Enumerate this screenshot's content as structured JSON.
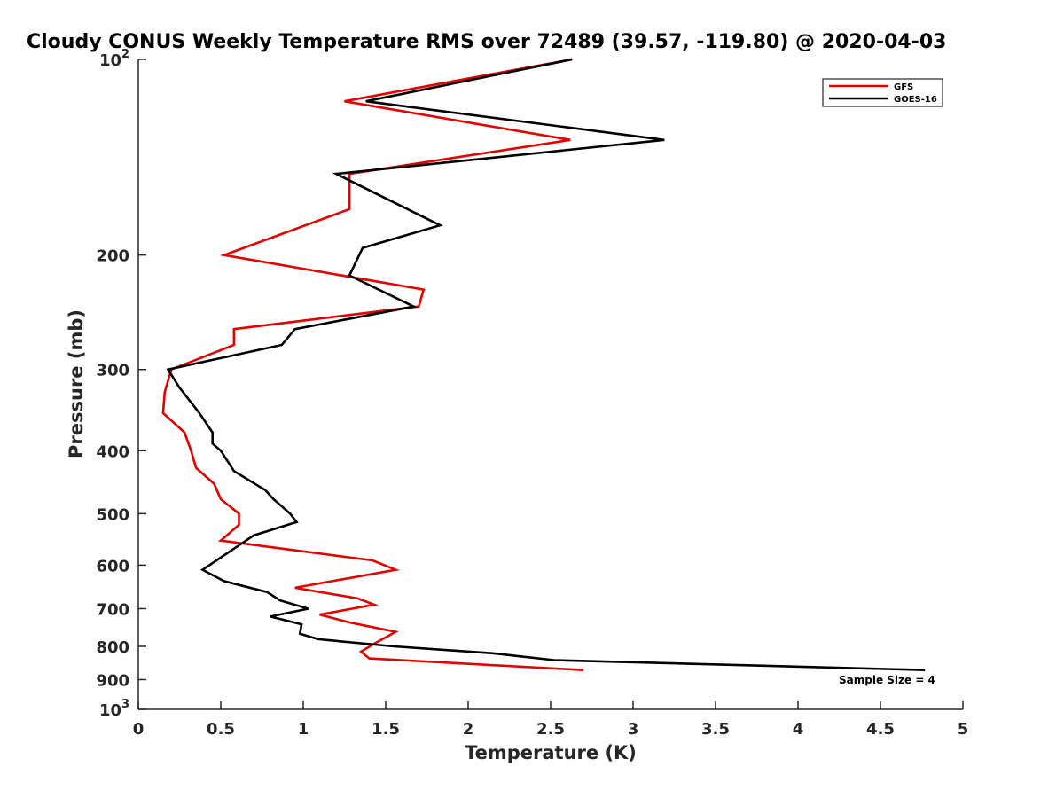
{
  "chart_data": {
    "type": "line",
    "title": "Cloudy CONUS Weekly Temperature RMS over 72489 (39.57, -119.80) @ 2020-04-03",
    "xlabel": "Temperature (K)",
    "ylabel": "Pressure (mb)",
    "xlim": [
      0,
      5
    ],
    "ylim": [
      100,
      1000
    ],
    "yscale": "log",
    "y_reversed": true,
    "x_ticks": [
      "0",
      "0.5",
      "1",
      "1.5",
      "2",
      "2.5",
      "3",
      "3.5",
      "4",
      "4.5",
      "5"
    ],
    "y_ticks": [
      {
        "value": 100,
        "label": "10",
        "sup": "2"
      },
      {
        "value": 200,
        "label": "200"
      },
      {
        "value": 300,
        "label": "300"
      },
      {
        "value": 400,
        "label": "400"
      },
      {
        "value": 500,
        "label": "500"
      },
      {
        "value": 600,
        "label": "600"
      },
      {
        "value": 700,
        "label": "700"
      },
      {
        "value": 800,
        "label": "800"
      },
      {
        "value": 900,
        "label": "900"
      },
      {
        "value": 1000,
        "label": "10",
        "sup": "3"
      }
    ],
    "legend_position": "top-right",
    "annotation": "Sample Size = 4",
    "series": [
      {
        "name": "GFS",
        "color": "#e50000",
        "points": [
          [
            2.63,
            100
          ],
          [
            1.25,
            116
          ],
          [
            2.62,
            133
          ],
          [
            1.28,
            150
          ],
          [
            1.28,
            170
          ],
          [
            0.52,
            200
          ],
          [
            1.73,
            226
          ],
          [
            1.7,
            240
          ],
          [
            0.58,
            260
          ],
          [
            0.58,
            275
          ],
          [
            0.2,
            300
          ],
          [
            0.16,
            325
          ],
          [
            0.15,
            350
          ],
          [
            0.28,
            375
          ],
          [
            0.32,
            400
          ],
          [
            0.35,
            425
          ],
          [
            0.46,
            450
          ],
          [
            0.5,
            475
          ],
          [
            0.61,
            500
          ],
          [
            0.61,
            520
          ],
          [
            0.5,
            550
          ],
          [
            1.42,
            590
          ],
          [
            1.56,
            610
          ],
          [
            0.95,
            650
          ],
          [
            1.33,
            675
          ],
          [
            1.43,
            690
          ],
          [
            1.1,
            715
          ],
          [
            1.28,
            735
          ],
          [
            1.56,
            760
          ],
          [
            1.44,
            790
          ],
          [
            1.35,
            815
          ],
          [
            1.4,
            835
          ],
          [
            2.7,
            870
          ]
        ]
      },
      {
        "name": "GOES-16",
        "color": "#000000",
        "points": [
          [
            2.63,
            100
          ],
          [
            1.38,
            116
          ],
          [
            3.19,
            133
          ],
          [
            1.2,
            150
          ],
          [
            1.83,
            180
          ],
          [
            1.36,
            195
          ],
          [
            1.28,
            215
          ],
          [
            1.67,
            240
          ],
          [
            0.95,
            260
          ],
          [
            0.87,
            275
          ],
          [
            0.18,
            300
          ],
          [
            0.25,
            320
          ],
          [
            0.37,
            350
          ],
          [
            0.45,
            375
          ],
          [
            0.45,
            390
          ],
          [
            0.5,
            400
          ],
          [
            0.58,
            430
          ],
          [
            0.77,
            460
          ],
          [
            0.82,
            475
          ],
          [
            0.92,
            500
          ],
          [
            0.96,
            515
          ],
          [
            0.7,
            540
          ],
          [
            0.54,
            575
          ],
          [
            0.39,
            610
          ],
          [
            0.52,
            635
          ],
          [
            0.78,
            660
          ],
          [
            0.86,
            680
          ],
          [
            1.03,
            700
          ],
          [
            0.8,
            720
          ],
          [
            0.99,
            740
          ],
          [
            0.98,
            765
          ],
          [
            1.09,
            780
          ],
          [
            1.55,
            800
          ],
          [
            2.15,
            820
          ],
          [
            2.52,
            840
          ],
          [
            4.77,
            870
          ]
        ]
      }
    ]
  }
}
